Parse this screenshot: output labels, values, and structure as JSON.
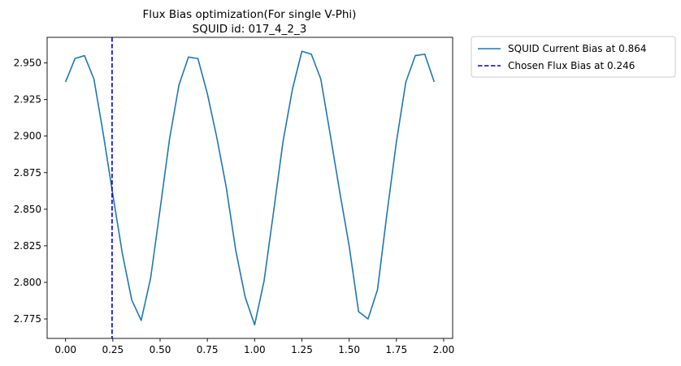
{
  "chart_data": {
    "type": "line",
    "title": "Flux Bias optimization(For single V-Phi)",
    "subtitle": "SQUID id: 017_4_2_3",
    "xlabel": "",
    "ylabel": "",
    "xlim": [
      -0.0975,
      2.0475
    ],
    "ylim": [
      2.7617,
      2.9675
    ],
    "xticks": [
      "0.00",
      "0.25",
      "0.50",
      "0.75",
      "1.00",
      "1.25",
      "1.50",
      "1.75",
      "2.00"
    ],
    "xtick_values": [
      0,
      0.25,
      0.5,
      0.75,
      1.0,
      1.25,
      1.5,
      1.75,
      2.0
    ],
    "yticks": [
      "2.775",
      "2.800",
      "2.825",
      "2.850",
      "2.875",
      "2.900",
      "2.925",
      "2.950"
    ],
    "ytick_values": [
      2.775,
      2.8,
      2.825,
      2.85,
      2.875,
      2.9,
      2.925,
      2.95
    ],
    "grid": false,
    "legend_position": "outside-top-right",
    "series": [
      {
        "name": "SQUID Current Bias at 0.864",
        "style": "solid",
        "color": "#1f77b4",
        "x": [
          0.0,
          0.05,
          0.1,
          0.15,
          0.2,
          0.25,
          0.3,
          0.35,
          0.4,
          0.45,
          0.5,
          0.55,
          0.6,
          0.65,
          0.7,
          0.75,
          0.8,
          0.85,
          0.9,
          0.95,
          1.0,
          1.05,
          1.1,
          1.15,
          1.2,
          1.25,
          1.3,
          1.35,
          1.4,
          1.45,
          1.5,
          1.55,
          1.6,
          1.65,
          1.7,
          1.75,
          1.8,
          1.85,
          1.9,
          1.95
        ],
        "y": [
          2.937,
          2.953,
          2.955,
          2.939,
          2.901,
          2.86,
          2.82,
          2.788,
          2.774,
          2.803,
          2.85,
          2.898,
          2.935,
          2.954,
          2.953,
          2.929,
          2.899,
          2.865,
          2.822,
          2.79,
          2.771,
          2.801,
          2.848,
          2.896,
          2.932,
          2.958,
          2.956,
          2.939,
          2.901,
          2.862,
          2.825,
          2.78,
          2.775,
          2.795,
          2.847,
          2.896,
          2.937,
          2.955,
          2.956,
          2.937
        ]
      },
      {
        "name": "Chosen Flux Bias at 0.246",
        "style": "dashed",
        "color": "#0000cc",
        "x_value": 0.246
      }
    ]
  }
}
